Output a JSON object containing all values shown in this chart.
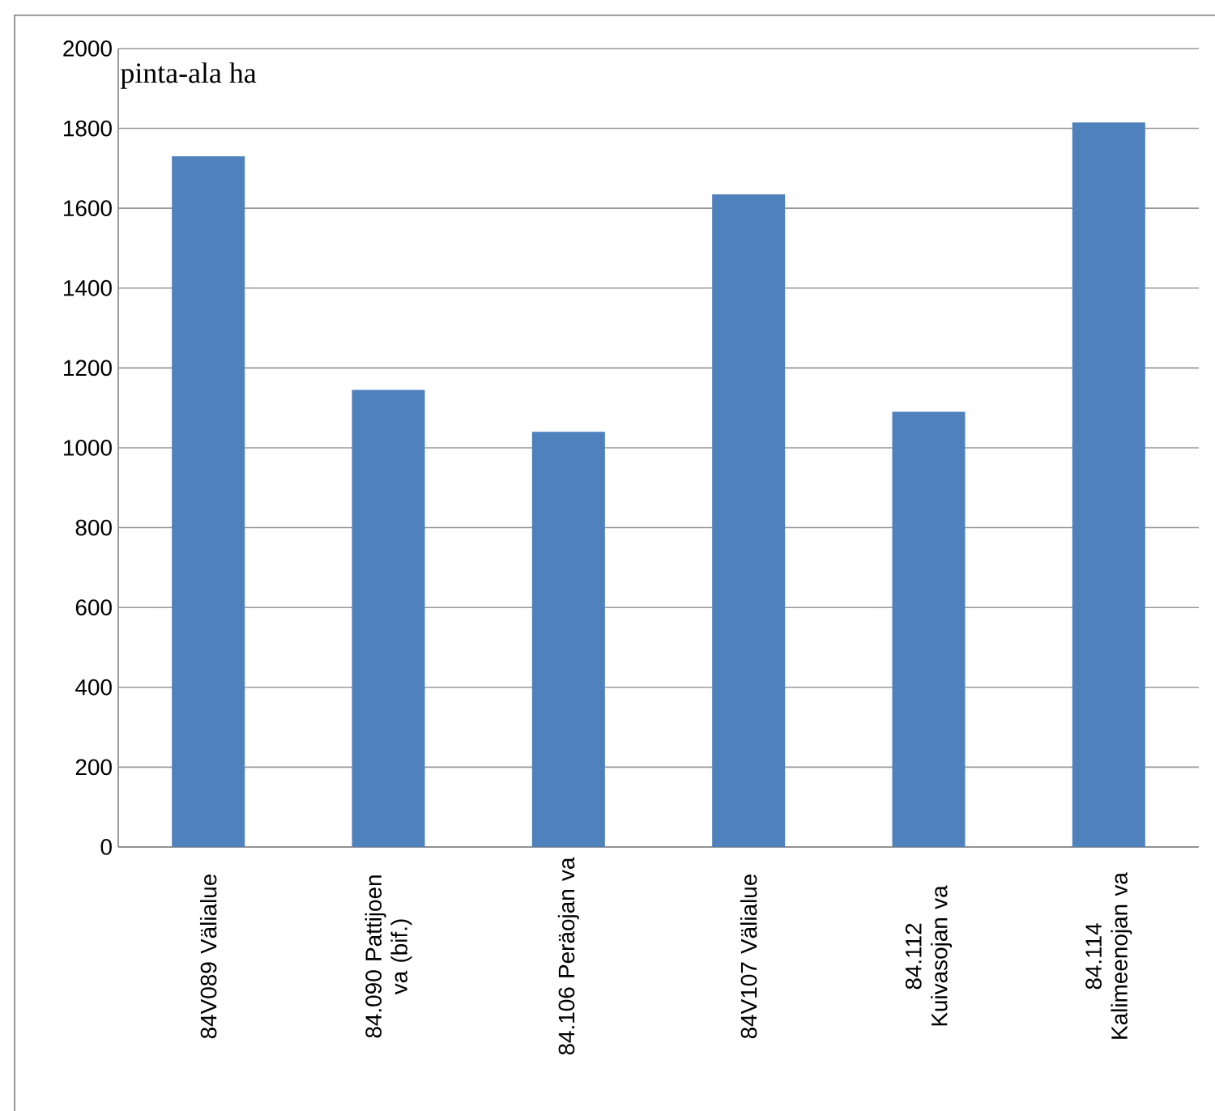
{
  "chart_data": {
    "type": "bar",
    "ylabel": "pinta-ala ha",
    "categories": [
      "84V089 Välialue",
      "84.090 Pattijoen va (bif.)",
      "84.106 Peräojan va",
      "84V107 Välialue",
      "84.112 Kuivasojan va",
      "84.114 Kalimeenojan va"
    ],
    "values": [
      1730,
      1145,
      1040,
      1635,
      1090,
      1815
    ],
    "color": "#4f81bd",
    "ylim": [
      0,
      2000
    ],
    "yticks": [
      0,
      200,
      400,
      600,
      800,
      1000,
      1200,
      1400,
      1600,
      1800,
      2000
    ],
    "grid": "y"
  }
}
